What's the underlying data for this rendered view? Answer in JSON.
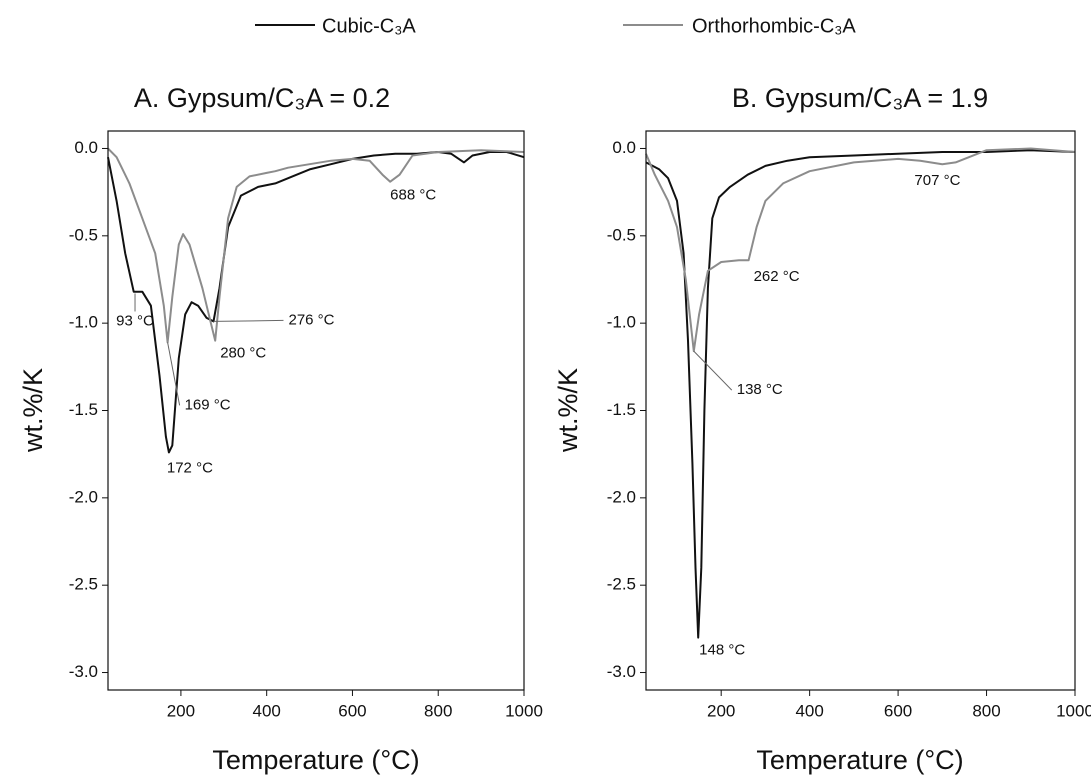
{
  "chart_data": [
    {
      "type": "line",
      "title": "A. Gypsum/C₃A = 0.2",
      "x_label": "Temperature (°C)",
      "y_label": "wt.%/K",
      "xlim": [
        30,
        1000
      ],
      "ylim": [
        -3.1,
        0.1
      ],
      "xticks": [
        200,
        400,
        600,
        800,
        1000
      ],
      "yticks": [
        {
          "value": 0,
          "label": "0.0"
        },
        -0.5,
        {
          "value": -1,
          "label": "-1.0"
        },
        -1.5,
        {
          "value": -2,
          "label": "-2.0"
        },
        -2.5,
        {
          "value": -3,
          "label": "-3.0"
        }
      ],
      "series": [
        {
          "name": "Cubic-C₃A",
          "color": "#111111",
          "x": [
            30,
            50,
            70,
            90,
            110,
            130,
            150,
            165,
            172,
            180,
            195,
            210,
            225,
            240,
            260,
            276,
            290,
            310,
            340,
            380,
            420,
            460,
            500,
            550,
            600,
            650,
            700,
            750,
            800,
            830,
            860,
            880,
            920,
            960,
            1000
          ],
          "values": [
            -0.05,
            -0.3,
            -0.6,
            -0.82,
            -0.82,
            -0.9,
            -1.3,
            -1.65,
            -1.74,
            -1.7,
            -1.2,
            -0.95,
            -0.88,
            -0.9,
            -0.97,
            -0.99,
            -0.8,
            -0.45,
            -0.27,
            -0.22,
            -0.2,
            -0.16,
            -0.12,
            -0.09,
            -0.06,
            -0.04,
            -0.03,
            -0.03,
            -0.02,
            -0.03,
            -0.08,
            -0.04,
            -0.02,
            -0.02,
            -0.05
          ]
        },
        {
          "name": "Orthorhombic-C₃A",
          "color": "#8c8c8c",
          "x": [
            30,
            50,
            80,
            110,
            140,
            160,
            169,
            180,
            195,
            205,
            220,
            250,
            270,
            280,
            290,
            310,
            330,
            360,
            400,
            420,
            450,
            500,
            550,
            600,
            640,
            670,
            688,
            710,
            740,
            800,
            900,
            1000
          ],
          "values": [
            0,
            -0.05,
            -0.2,
            -0.4,
            -0.6,
            -0.9,
            -1.11,
            -0.85,
            -0.55,
            -0.49,
            -0.55,
            -0.8,
            -1.0,
            -1.1,
            -0.85,
            -0.4,
            -0.22,
            -0.16,
            -0.14,
            -0.13,
            -0.11,
            -0.09,
            -0.07,
            -0.06,
            -0.07,
            -0.15,
            -0.19,
            -0.15,
            -0.04,
            -0.02,
            -0.01,
            -0.02
          ]
        }
      ],
      "annotations": [
        {
          "text": "93 °C",
          "x": 93,
          "y": -0.83
        },
        {
          "text": "169 °C",
          "x": 169,
          "y": -1.11
        },
        {
          "text": "172 °C",
          "x": 172,
          "y": -1.74
        },
        {
          "text": "276 °C",
          "x": 276,
          "y": -0.99
        },
        {
          "text": "280 °C",
          "x": 280,
          "y": -1.1
        },
        {
          "text": "688 °C",
          "x": 688,
          "y": -0.19
        }
      ]
    },
    {
      "type": "line",
      "title": "B. Gypsum/C₃A = 1.9",
      "x_label": "Temperature (°C)",
      "y_label": "wt.%/K",
      "xlim": [
        30,
        1000
      ],
      "ylim": [
        -3.1,
        0.1
      ],
      "xticks": [
        200,
        400,
        600,
        800,
        1000
      ],
      "yticks": [
        {
          "value": 0,
          "label": "0.0"
        },
        -0.5,
        {
          "value": -1,
          "label": "-1.0"
        },
        -1.5,
        {
          "value": -2,
          "label": "-2.0"
        },
        -2.5,
        {
          "value": -3,
          "label": "-3.0"
        }
      ],
      "series": [
        {
          "color": "#111111",
          "x": [
            30,
            60,
            80,
            100,
            115,
            125,
            135,
            142,
            148,
            155,
            162,
            170,
            180,
            195,
            220,
            260,
            300,
            350,
            400,
            500,
            600,
            700,
            800,
            900,
            1000
          ],
          "values": [
            -0.08,
            -0.12,
            -0.17,
            -0.3,
            -0.6,
            -1.1,
            -1.8,
            -2.4,
            -2.8,
            -2.4,
            -1.5,
            -0.8,
            -0.4,
            -0.28,
            -0.22,
            -0.15,
            -0.1,
            -0.07,
            -0.05,
            -0.04,
            -0.03,
            -0.02,
            -0.02,
            -0.01,
            -0.02
          ]
        },
        {
          "color": "#8c8c8c",
          "x": [
            30,
            50,
            80,
            100,
            120,
            138,
            150,
            170,
            200,
            240,
            262,
            280,
            300,
            340,
            400,
            500,
            600,
            650,
            700,
            730,
            760,
            800,
            900,
            1000
          ],
          "values": [
            -0.03,
            -0.15,
            -0.3,
            -0.45,
            -0.75,
            -1.16,
            -0.95,
            -0.7,
            -0.65,
            -0.64,
            -0.64,
            -0.45,
            -0.3,
            -0.2,
            -0.13,
            -0.08,
            -0.06,
            -0.07,
            -0.09,
            -0.08,
            -0.05,
            -0.01,
            0,
            -0.02
          ]
        }
      ],
      "annotations": [
        {
          "text": "148 °C",
          "x": 148,
          "y": -2.8
        },
        {
          "text": "138 °C",
          "x": 138,
          "y": -1.16
        },
        {
          "text": "262 °C",
          "x": 262,
          "y": -0.64
        },
        {
          "text": "707 °C",
          "x": 707,
          "y": -0.09
        }
      ]
    }
  ]
}
